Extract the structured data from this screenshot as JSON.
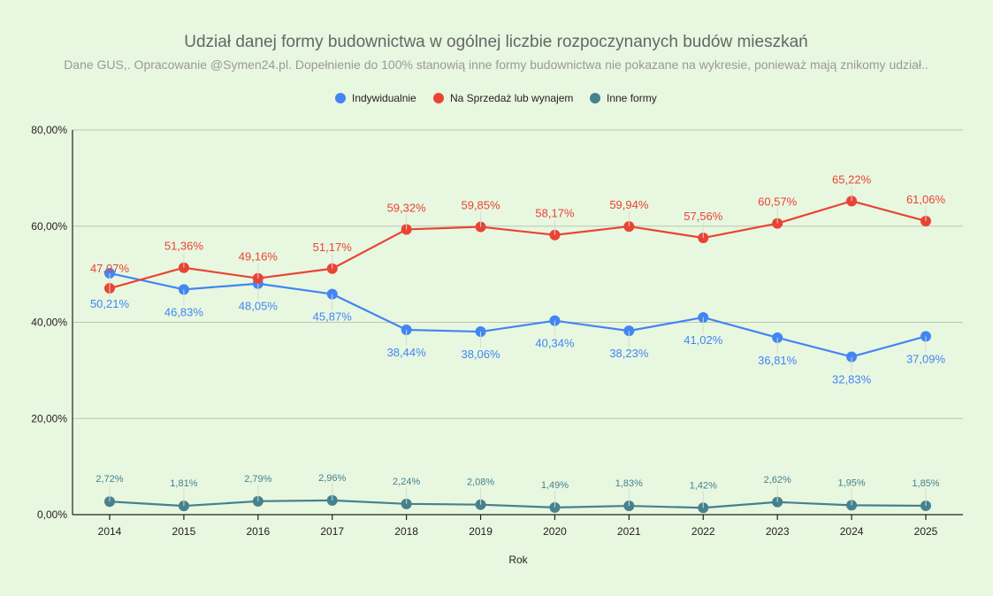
{
  "chart_data": {
    "type": "line",
    "title": "Udział danej formy budownictwa w ogólnej liczbie rozpoczynanych budów mieszkań",
    "subtitle": "Dane GUS,. Opracowanie @Symen24.pl. Dopełnienie do 100% stanowią inne formy budownictwa nie pokazane na wykresie, ponieważ mają znikomy udział..",
    "xlabel": "Rok",
    "ylabel": "",
    "x": [
      "2014",
      "2015",
      "2016",
      "2017",
      "2018",
      "2019",
      "2020",
      "2021",
      "2022",
      "2023",
      "2024",
      "2025"
    ],
    "ylim": [
      0,
      80
    ],
    "yticks": [
      0,
      20,
      40,
      60,
      80
    ],
    "ytick_labels": [
      "0,00%",
      "20,00%",
      "40,00%",
      "60,00%",
      "80,00%"
    ],
    "grid": true,
    "legend_position": "top",
    "series": [
      {
        "name": "Indywidualnie",
        "color": "#4285f4",
        "values": [
          50.21,
          46.83,
          48.05,
          45.87,
          38.44,
          38.06,
          40.34,
          38.23,
          41.02,
          36.81,
          32.83,
          37.09
        ],
        "labels": [
          "50,21%",
          "46,83%",
          "48,05%",
          "45,87%",
          "38,44%",
          "38,06%",
          "40,34%",
          "38,23%",
          "41,02%",
          "36,81%",
          "32,83%",
          "37,09%"
        ],
        "label_position": "below"
      },
      {
        "name": "Na Sprzedaż lub wynajem",
        "color": "#ea4335",
        "values": [
          47.07,
          51.36,
          49.16,
          51.17,
          59.32,
          59.85,
          58.17,
          59.94,
          57.56,
          60.57,
          65.22,
          61.06
        ],
        "labels": [
          "47,07%",
          "51,36%",
          "49,16%",
          "51,17%",
          "59,32%",
          "59,85%",
          "58,17%",
          "59,94%",
          "57,56%",
          "60,57%",
          "65,22%",
          "61,06%"
        ],
        "label_position": "above"
      },
      {
        "name": "Inne formy",
        "color": "#46818f",
        "values": [
          2.72,
          1.81,
          2.79,
          2.96,
          2.24,
          2.08,
          1.49,
          1.83,
          1.42,
          2.62,
          1.95,
          1.85
        ],
        "labels": [
          "2,72%",
          "1,81%",
          "2,79%",
          "2,96%",
          "2,24%",
          "2,08%",
          "1,49%",
          "1,83%",
          "1,42%",
          "2,62%",
          "1,95%",
          "1,85%"
        ],
        "label_position": "above"
      }
    ]
  }
}
